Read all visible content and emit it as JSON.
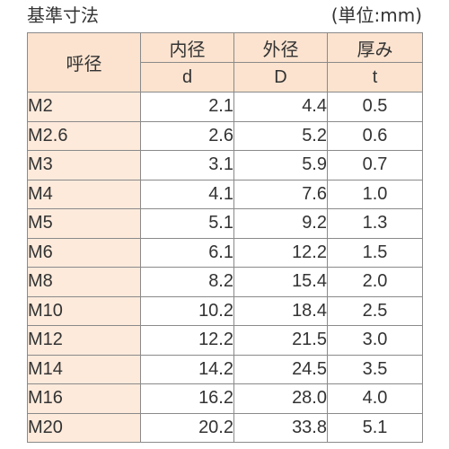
{
  "title": "基準寸法",
  "unit": "(単位:mm)",
  "header": {
    "nominal": "呼径",
    "inner": "内径",
    "outer": "外径",
    "thickness": "厚み",
    "inner_sym": "d",
    "outer_sym": "D",
    "thickness_sym": "t"
  },
  "rows": [
    {
      "size": "M2",
      "d": "2.1",
      "D": "4.4",
      "t": "0.5"
    },
    {
      "size": "M2.6",
      "d": "2.6",
      "D": "5.2",
      "t": "0.6"
    },
    {
      "size": "M3",
      "d": "3.1",
      "D": "5.9",
      "t": "0.7"
    },
    {
      "size": "M4",
      "d": "4.1",
      "D": "7.6",
      "t": "1.0"
    },
    {
      "size": "M5",
      "d": "5.1",
      "D": "9.2",
      "t": "1.3"
    },
    {
      "size": "M6",
      "d": "6.1",
      "D": "12.2",
      "t": "1.5"
    },
    {
      "size": "M8",
      "d": "8.2",
      "D": "15.4",
      "t": "2.0"
    },
    {
      "size": "M10",
      "d": "10.2",
      "D": "18.4",
      "t": "2.5"
    },
    {
      "size": "M12",
      "d": "12.2",
      "D": "21.5",
      "t": "3.0"
    },
    {
      "size": "M14",
      "d": "14.2",
      "D": "24.5",
      "t": "3.5"
    },
    {
      "size": "M16",
      "d": "16.2",
      "D": "28.0",
      "t": "4.0"
    },
    {
      "size": "M20",
      "d": "20.2",
      "D": "33.8",
      "t": "5.1"
    }
  ],
  "colors": {
    "header_bg": "#fbe3cf",
    "size_col_bg": "#fdeadb",
    "border": "#8a8a8a",
    "text": "#333333"
  }
}
